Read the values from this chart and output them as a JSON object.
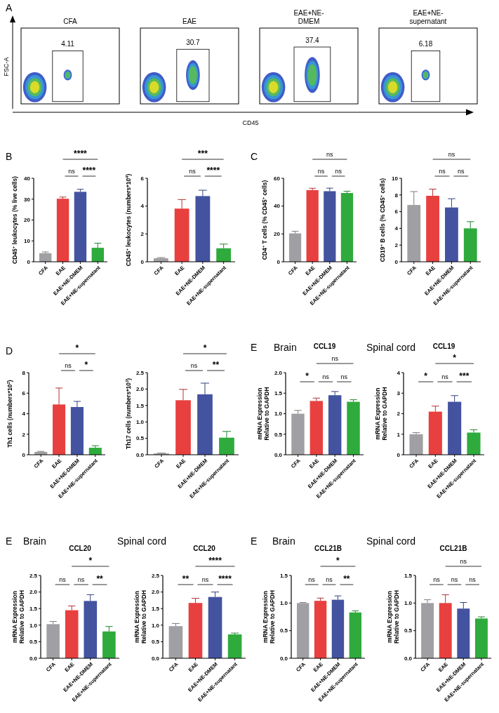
{
  "chart_data": [
    {
      "type": "other",
      "title": "CFA",
      "ylabel": "FSC-A",
      "xlabel": "CD45",
      "annotations": [
        "A",
        "4.11"
      ]
    },
    {
      "type": "other",
      "title": "EAE",
      "annotations": [
        "30.7"
      ]
    },
    {
      "type": "other",
      "title": "EAE+NE-DMEM",
      "annotations": [
        "37.4"
      ]
    },
    {
      "type": "other",
      "title": "EAE+NE-supernatant",
      "annotations": [
        "6.18"
      ]
    },
    {
      "type": "bar",
      "categories": [
        "CFA",
        "EAE",
        "EAE+NE-DMEM",
        "EAE+NE-supernatant"
      ],
      "colors": [
        "#a0a0a4",
        "#e8403f",
        "#4353a0",
        "#2eab3c"
      ],
      "values": [
        4.1,
        30.2,
        33.5,
        6.7
      ],
      "errors": [
        0.6,
        0.8,
        1.2,
        2.2
      ],
      "ylim": [
        0,
        40
      ],
      "yticks": [
        0,
        10,
        20,
        30,
        40
      ],
      "ylabel": "CD45$^{+}$ leukocytes (% live cells)",
      "annotations": [
        "B",
        "ns",
        "****",
        "****"
      ]
    },
    {
      "type": "bar",
      "categories": [
        "CFA",
        "EAE",
        "EAE+NE-DMEM",
        "EAE+NE-supernatant"
      ],
      "colors": [
        "#a0a0a4",
        "#e8403f",
        "#4353a0",
        "#2eab3c"
      ],
      "values": [
        0.25,
        3.82,
        4.72,
        0.97
      ],
      "errors": [
        0.05,
        0.65,
        0.42,
        0.3
      ],
      "ylim": [
        0,
        6
      ],
      "yticks": [
        0,
        2,
        4,
        6
      ],
      "ylabel": "CD45$^{+}$ leukocytes (numbers*10$^{4}$)",
      "annotations": [
        "ns",
        "****",
        "***"
      ]
    },
    {
      "type": "bar",
      "categories": [
        "CFA",
        "EAE",
        "EAE+NE-DMEM",
        "EAE+NE-supernatant"
      ],
      "colors": [
        "#a0a0a4",
        "#e8403f",
        "#4353a0",
        "#2eab3c"
      ],
      "values": [
        20.4,
        51.5,
        50.7,
        49.4
      ],
      "errors": [
        1.5,
        1.3,
        2.2,
        1.3
      ],
      "ylim": [
        0,
        60
      ],
      "yticks": [
        0,
        20,
        40,
        60
      ],
      "ylabel": "CD4$^{+}$ T cells (% CD45$^{+}$ cells)",
      "annotations": [
        "C",
        "ns",
        "ns",
        "ns"
      ]
    },
    {
      "type": "bar",
      "categories": [
        "CFA",
        "EAE",
        "EAE+NE-DMEM",
        "EAE+NE-supernatant"
      ],
      "colors": [
        "#a0a0a4",
        "#e8403f",
        "#4353a0",
        "#2eab3c"
      ],
      "values": [
        6.8,
        7.9,
        6.5,
        4.0
      ],
      "errors": [
        1.6,
        0.8,
        1.05,
        0.8
      ],
      "ylim": [
        0,
        10
      ],
      "yticks": [
        0,
        2,
        4,
        6,
        8,
        10
      ],
      "ylabel": "CD19$^{+}$ B cells (% CD45$^{+}$ cells)",
      "annotations": [
        "ns",
        "ns",
        "ns"
      ]
    },
    {
      "type": "bar",
      "categories": [
        "CFA",
        "EAE",
        "EAE+NE-DMEM",
        "EAE+NE-supernatant"
      ],
      "colors": [
        "#a0a0a4",
        "#e8403f",
        "#4353a0",
        "#2eab3c"
      ],
      "values": [
        0.28,
        4.9,
        4.65,
        0.68
      ],
      "errors": [
        0.05,
        1.6,
        0.55,
        0.2
      ],
      "ylim": [
        0,
        8
      ],
      "yticks": [
        0,
        2,
        4,
        6,
        8
      ],
      "ylabel": "Th1 cells (numbers*10$^{2}$)",
      "annotations": [
        "D",
        "ns",
        "*",
        "*"
      ]
    },
    {
      "type": "bar",
      "categories": [
        "CFA",
        "EAE",
        "EAE+NE-DMEM",
        "EAE+NE-supernatant"
      ],
      "colors": [
        "#a0a0a4",
        "#e8403f",
        "#4353a0",
        "#2eab3c"
      ],
      "values": [
        0.04,
        1.66,
        1.84,
        0.52
      ],
      "errors": [
        0.01,
        0.33,
        0.34,
        0.19
      ],
      "ylim": [
        0,
        2.5
      ],
      "yticks": [
        {
          "value": 0,
          "label": "0.0"
        },
        0.5,
        {
          "value": 1,
          "label": "1.0"
        },
        1.5,
        {
          "value": 2,
          "label": "2.0"
        },
        2.5
      ],
      "ylabel": "Th17 cells (numbers*10$^{3}$)",
      "annotations": [
        "ns",
        "**",
        "*"
      ]
    },
    {
      "type": "bar",
      "title": "CCL19",
      "subtitle": "Brain",
      "categories": [
        "CFA",
        "EAE",
        "EAE+NE-DMEM",
        "EAE+NE-supernatant"
      ],
      "colors": [
        "#a0a0a4",
        "#e8403f",
        "#4353a0",
        "#2eab3c"
      ],
      "values": [
        1.0,
        1.31,
        1.45,
        1.29
      ],
      "errors": [
        0.08,
        0.07,
        0.09,
        0.05
      ],
      "ylim": [
        0,
        2
      ],
      "yticks": [
        {
          "value": 0,
          "label": "0.0"
        },
        0.5,
        {
          "value": 1,
          "label": "1.0"
        },
        1.5,
        {
          "value": 2,
          "label": "2.0"
        }
      ],
      "ylabel": "mRNA Expression\nRelative to GAPDH",
      "annotations": [
        "E",
        "*",
        "ns",
        "ns",
        "ns"
      ]
    },
    {
      "type": "bar",
      "title": "CCL19",
      "subtitle": "Spinal cord",
      "categories": [
        "CFA",
        "EAE",
        "EAE+NE-DMEM",
        "EAE+NE-supernatant"
      ],
      "colors": [
        "#a0a0a4",
        "#e8403f",
        "#4353a0",
        "#2eab3c"
      ],
      "values": [
        1.0,
        2.1,
        2.58,
        1.08
      ],
      "errors": [
        0.08,
        0.27,
        0.3,
        0.14
      ],
      "ylim": [
        0,
        4
      ],
      "yticks": [
        0,
        1,
        2,
        3,
        4
      ],
      "ylabel": "mRNA Expression\nRelative to GAPDH",
      "annotations": [
        "*",
        "ns",
        "***",
        "*"
      ]
    },
    {
      "type": "bar",
      "title": "CCL20",
      "subtitle": "Brain",
      "categories": [
        "CFA",
        "EAE",
        "EAE+NE-DMEM",
        "EAE+NE-supernatant"
      ],
      "colors": [
        "#a0a0a4",
        "#e8403f",
        "#4353a0",
        "#2eab3c"
      ],
      "values": [
        1.03,
        1.45,
        1.73,
        0.81
      ],
      "errors": [
        0.08,
        0.13,
        0.19,
        0.15
      ],
      "ylim": [
        0,
        2.5
      ],
      "yticks": [
        {
          "value": 0,
          "label": "0.0"
        },
        0.5,
        {
          "value": 1,
          "label": "1.0"
        },
        1.5,
        {
          "value": 2,
          "label": "2.0"
        },
        2.5
      ],
      "ylabel": "mRNA Expression\nRelative to GAPDH",
      "annotations": [
        "E",
        "ns",
        "ns",
        "**",
        "*"
      ]
    },
    {
      "type": "bar",
      "title": "CCL20",
      "subtitle": "Spinal cord",
      "categories": [
        "CFA",
        "EAE",
        "EAE+NE-DMEM",
        "EAE+NE-supernatant"
      ],
      "colors": [
        "#a0a0a4",
        "#e8403f",
        "#4353a0",
        "#2eab3c"
      ],
      "values": [
        0.97,
        1.67,
        1.85,
        0.72
      ],
      "errors": [
        0.08,
        0.14,
        0.15,
        0.04
      ],
      "ylim": [
        0,
        2.5
      ],
      "yticks": [
        {
          "value": 0,
          "label": "0.0"
        },
        0.5,
        {
          "value": 1,
          "label": "1.0"
        },
        1.5,
        {
          "value": 2,
          "label": "2.0"
        },
        2.5
      ],
      "ylabel": "mRNA Expression\nRelative to GAPDH",
      "annotations": [
        "**",
        "ns",
        "****",
        "****"
      ]
    },
    {
      "type": "bar",
      "title": "CCL21B",
      "subtitle": "Brain",
      "categories": [
        "CFA",
        "EAE",
        "EAE+NE-DMEM",
        "EAE+NE-supernatant"
      ],
      "colors": [
        "#a0a0a4",
        "#e8403f",
        "#4353a0",
        "#2eab3c"
      ],
      "values": [
        1.0,
        1.04,
        1.06,
        0.83
      ],
      "errors": [
        0.01,
        0.05,
        0.07,
        0.03
      ],
      "ylim": [
        0,
        1.5
      ],
      "yticks": [
        {
          "value": 0,
          "label": "0.0"
        },
        0.5,
        {
          "value": 1,
          "label": "1.0"
        },
        1.5
      ],
      "ylabel": "mRNA Expression\nRelative to GAPDH",
      "annotations": [
        "E",
        "ns",
        "ns",
        "**",
        "*"
      ]
    },
    {
      "type": "bar",
      "title": "CCL21B",
      "subtitle": "Spinal cord",
      "categories": [
        "CFA",
        "EAE",
        "EAE+NE-DMEM",
        "EAE+NE-supernatant"
      ],
      "colors": [
        "#a0a0a4",
        "#e8403f",
        "#4353a0",
        "#2eab3c"
      ],
      "values": [
        1.0,
        1.0,
        0.9,
        0.72
      ],
      "errors": [
        0.06,
        0.15,
        0.11,
        0.03
      ],
      "ylim": [
        0,
        1.5
      ],
      "yticks": [
        {
          "value": 0,
          "label": "0.0"
        },
        0.5,
        {
          "value": 1,
          "label": "1.0"
        },
        1.5
      ],
      "ylabel": "mRNA Expression\nRelative to GAPDH",
      "annotations": [
        "ns",
        "ns",
        "ns",
        "ns"
      ]
    }
  ]
}
